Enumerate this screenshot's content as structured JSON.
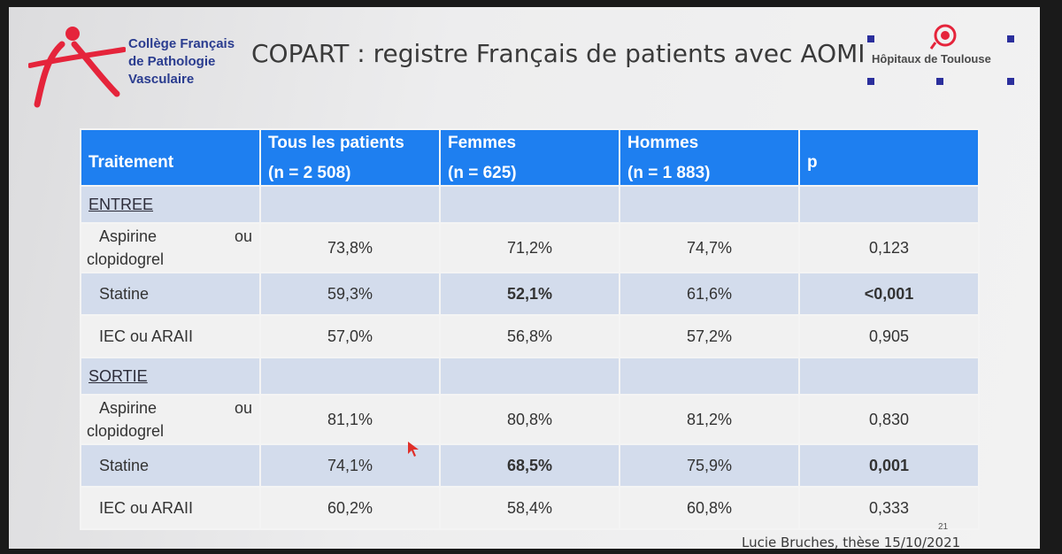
{
  "logo_left": {
    "lines": [
      "Collège Français",
      "de Pathologie",
      "Vasculaire"
    ]
  },
  "title": "COPART : registre Français de patients avec AOMI",
  "logo_right": {
    "name": "Hôpitaux de Toulouse"
  },
  "table": {
    "header": {
      "col1": "Traitement",
      "col2_top": "Tous les patients",
      "col2_bot": "(n = 2 508)",
      "col3_top": "Femmes",
      "col3_bot": "(n = 625)",
      "col4_top": "Hommes",
      "col4_bot": "(n = 1 883)",
      "col5": "p"
    },
    "section1": "ENTREE",
    "section2": "SORTIE",
    "entree_rows": [
      {
        "name1": "Aspirine",
        "ou": "ou",
        "name2": "clopidogrel",
        "tous": "73,8%",
        "femmes": "71,2%",
        "hommes": "74,7%",
        "p": "0,123"
      },
      {
        "name": "Statine",
        "tous": "59,3%",
        "femmes": "52,1%",
        "hommes": "61,6%",
        "p": "<0,001"
      },
      {
        "name": "IEC ou ARAII",
        "tous": "57,0%",
        "femmes": "56,8%",
        "hommes": "57,2%",
        "p": "0,905"
      }
    ],
    "sortie_rows": [
      {
        "name1": "Aspirine",
        "ou": "ou",
        "name2": "clopidogrel",
        "tous": "81,1%",
        "femmes": "80,8%",
        "hommes": "81,2%",
        "p": "0,830"
      },
      {
        "name": "Statine",
        "tous": "74,1%",
        "femmes": "68,5%",
        "hommes": "75,9%",
        "p": "0,001"
      },
      {
        "name": "IEC ou ARAII",
        "tous": "60,2%",
        "femmes": "58,4%",
        "hommes": "60,8%",
        "p": "0,333"
      }
    ]
  },
  "footer": "Lucie Bruches, thèse 15/10/2021",
  "slide_number": "21",
  "colors": {
    "header_blue": "#1e7ff0",
    "band_blue": "#d3dcec",
    "highlight_red": "#e32a2a",
    "brand_navy": "#2a3c8f"
  }
}
